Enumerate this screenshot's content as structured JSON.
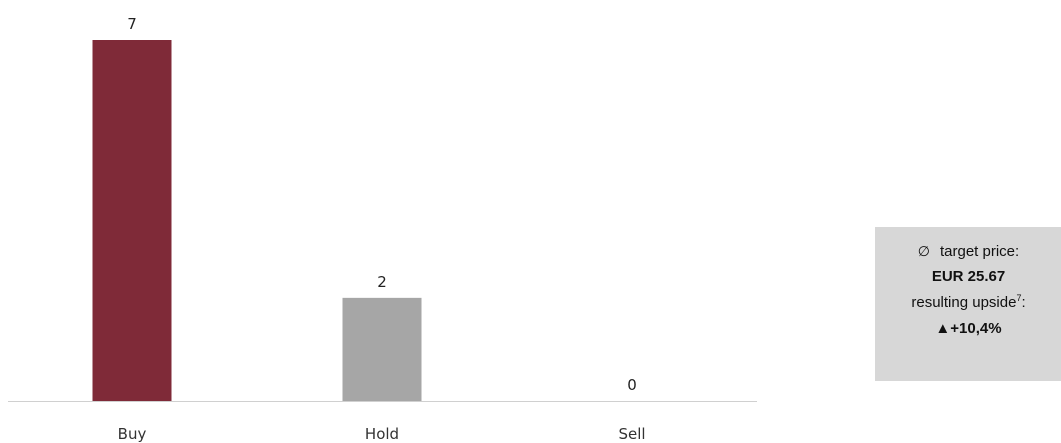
{
  "chart_data": {
    "type": "bar",
    "categories": [
      "Buy",
      "Hold",
      "Sell"
    ],
    "values": [
      7,
      2,
      0
    ],
    "data_labels": [
      "7",
      "2",
      "0"
    ],
    "colors": [
      "#7f2a38",
      "#a6a6a6",
      "#a6a6a6"
    ],
    "ylim": [
      0,
      7
    ],
    "grid": false,
    "title": "",
    "xlabel": "",
    "ylabel": ""
  },
  "info_box": {
    "avg_symbol": "∅",
    "target_label": "target price:",
    "target_value": "EUR 25.67",
    "upside_label": "resulting upside",
    "upside_footnote": "7",
    "upside_suffix": ":",
    "upside_arrow": "▲",
    "upside_value": "+10,4%"
  }
}
